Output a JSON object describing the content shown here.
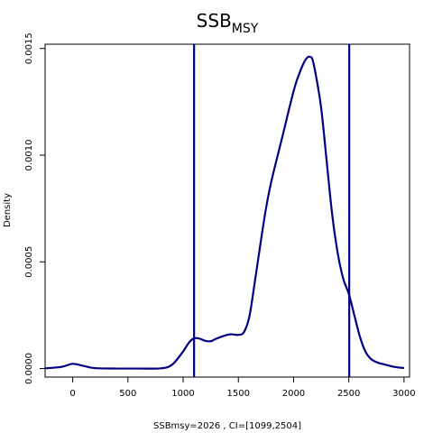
{
  "chart_data": {
    "type": "line",
    "title": "SSB",
    "title_subscript": "MSY",
    "xlabel": "SSBmsy=2026 , CI=[1099,2504]",
    "ylabel": "Density",
    "xlim": [
      -250,
      3050
    ],
    "ylim": [
      -4e-05,
      0.00152
    ],
    "x_ticks": [
      0,
      500,
      1000,
      1500,
      2000,
      2500,
      3000
    ],
    "x_tick_labels": [
      "0",
      "500",
      "1000",
      "1500",
      "2000",
      "2500",
      "3000"
    ],
    "y_ticks": [
      0,
      0.0005,
      0.001,
      0.0015
    ],
    "y_tick_labels": [
      "0.0000",
      "0.0005",
      "0.0010",
      "0.0015"
    ],
    "grid": false,
    "line_color": "#000080",
    "series": [
      {
        "x": [
          -250,
          -100,
          0,
          100,
          200,
          400,
          600,
          800,
          900,
          1000,
          1050,
          1100,
          1150,
          1200,
          1250,
          1300,
          1400,
          1450,
          1500,
          1550,
          1600,
          1650,
          1700,
          1750,
          1800,
          1900,
          2000,
          2050,
          2100,
          2130,
          2150,
          2170,
          2200,
          2250,
          2300,
          2350,
          2400,
          2450,
          2500,
          2550,
          2600,
          2650,
          2700,
          2750,
          2800,
          2900,
          3000
        ],
        "y": [
          1e-06,
          8e-06,
          2.2e-05,
          1.2e-05,
          2e-06,
          0.0,
          0.0,
          1e-06,
          1.8e-05,
          8e-05,
          0.00012,
          0.000142,
          0.00014,
          0.00013,
          0.000128,
          0.00014,
          0.000158,
          0.00016,
          0.000158,
          0.00017,
          0.000245,
          0.00041,
          0.000585,
          0.00075,
          0.00088,
          0.00109,
          0.0013,
          0.00138,
          0.00144,
          0.00146,
          0.00146,
          0.00145,
          0.00138,
          0.00122,
          0.00097,
          0.00072,
          0.00054,
          0.00042,
          0.00035,
          0.00025,
          0.00015,
          8e-05,
          4.5e-05,
          3e-05,
          2.2e-05,
          9e-06,
          2e-06
        ]
      }
    ],
    "vlines": [
      1099,
      2504
    ]
  }
}
